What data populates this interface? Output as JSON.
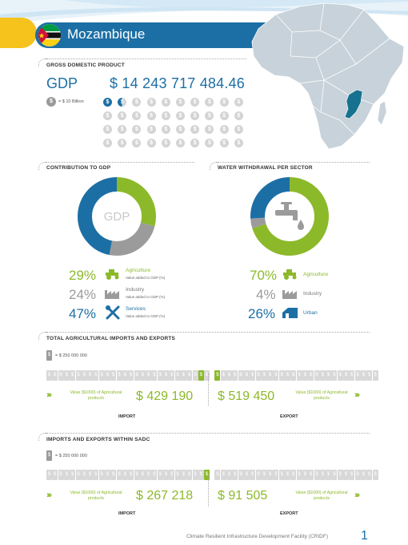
{
  "header": {
    "country": "Mozambique"
  },
  "gdp": {
    "section_title": "GROSS DOMESTIC PRODUCT",
    "label": "GDP",
    "value": "$ 14 243 717 484.46",
    "legend": "= $ 10 Billion",
    "coin_symbol": "$",
    "coins_total": 40,
    "coins_filled": 1.4
  },
  "contribution": {
    "section_title": "CONTRIBUTION TO GDP",
    "center_label": "GDP",
    "sectors": [
      {
        "pct": "29%",
        "name": "Agriculture",
        "sub": "Value added to GDP (%)",
        "value": 29,
        "color": "#8cb92a"
      },
      {
        "pct": "24%",
        "name": "Industry",
        "sub": "Value added to GDP (%)",
        "value": 24,
        "color": "#9b9b9b"
      },
      {
        "pct": "47%",
        "name": "Services",
        "sub": "Value added to GDP (%)",
        "value": 47,
        "color": "#1c6fa5"
      }
    ]
  },
  "water": {
    "section_title": "WATER WITHDRAWAL PER SECTOR",
    "sectors": [
      {
        "pct": "70%",
        "name": "Agriculture",
        "value": 70,
        "color": "#8cb92a"
      },
      {
        "pct": "4%",
        "name": "Industry",
        "value": 4,
        "color": "#9b9b9b"
      },
      {
        "pct": "26%",
        "name": "Urban",
        "value": 26,
        "color": "#1c6fa5"
      }
    ]
  },
  "agri_trade": {
    "section_title": "TOTAL AGRICULTURAL IMPORTS AND EXPORTS",
    "legend": "= $ 250 000 000",
    "import_value": "$ 429 190",
    "export_value": "$ 519 450",
    "import_caption": "Value ($1000) of Agricultural products",
    "export_caption": "Value ($1000) of Agricultural products",
    "import_label": "IMPORT",
    "export_label": "EXPORT"
  },
  "sadc_trade": {
    "section_title": "IMPORTS AND EXPORTS WITHIN SADC",
    "legend": "= $ 250 000 000",
    "import_value": "$ 267 218",
    "export_value": "$ 91 505",
    "import_caption": "Value ($1000) of Agricultural products",
    "export_caption": "Value ($1000) of Agricultural products",
    "import_label": "IMPORT",
    "export_label": "EXPORT"
  },
  "footer": {
    "text": "Climate Resilient Infrastructure Development Facility (CRIDF)",
    "page": "1"
  }
}
